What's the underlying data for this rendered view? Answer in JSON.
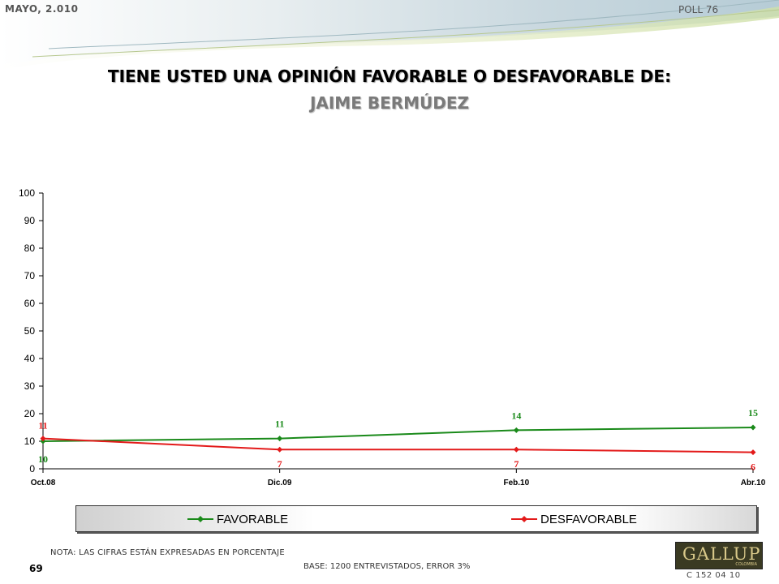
{
  "header": {
    "date": "MAYO, 2.010",
    "poll": "POLL 76"
  },
  "question": "TIENE USTED UNA OPINIÓN FAVORABLE O DESFAVORABLE DE:",
  "subject": "JAIME BERMÚDEZ",
  "chart_data": {
    "type": "line",
    "categories": [
      "Oct.08",
      "Dic.09",
      "Feb.10",
      "Abr.10"
    ],
    "ylim": [
      0,
      100
    ],
    "yticks": [
      0,
      10,
      20,
      30,
      40,
      50,
      60,
      70,
      80,
      90,
      100
    ],
    "grid": false,
    "legend_position": "bottom",
    "series": [
      {
        "name": "FAVORABLE",
        "values": [
          10,
          11,
          14,
          15
        ],
        "color": "#1a8a1a"
      },
      {
        "name": "DESFAVORABLE",
        "values": [
          11,
          7,
          7,
          6
        ],
        "color": "#e31a1a"
      }
    ]
  },
  "footer": {
    "note": "NOTA: LAS CIFRAS ESTÁN EXPRESADAS EN PORCENTAJE",
    "base": "BASE: 1200 ENTREVISTADOS, ERROR 3%",
    "page_number": "69",
    "logo_text": "GALLUP",
    "logo_sub": "COLOMBIA",
    "code": "C 152 04 10"
  }
}
